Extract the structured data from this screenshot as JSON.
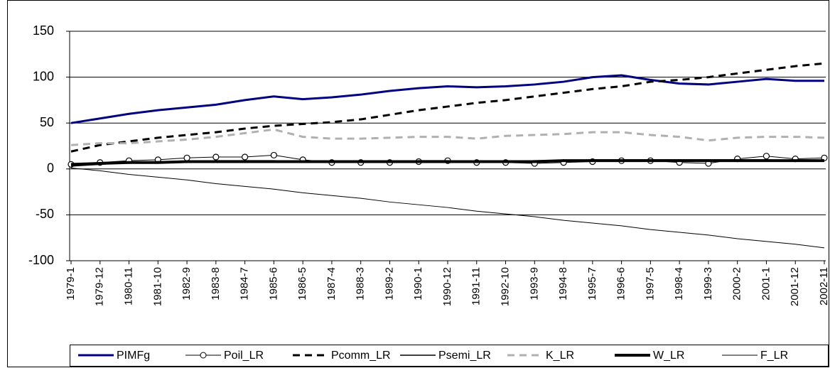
{
  "chart_data": {
    "type": "line",
    "categories": [
      "1979-1",
      "1979-12",
      "1980-11",
      "1981-10",
      "1982-9",
      "1983-8",
      "1984-7",
      "1985-6",
      "1986-5",
      "1987-4",
      "1988-3",
      "1989-2",
      "1990-1",
      "1990-12",
      "1991-11",
      "1992-10",
      "1993-9",
      "1994-8",
      "1995-7",
      "1996-6",
      "1997-5",
      "1998-4",
      "1999-3",
      "2000-2",
      "2001-1",
      "2001-12",
      "2002-11"
    ],
    "series": [
      {
        "name": "PIMFg",
        "color": "#000080",
        "width": 3,
        "dash": "solid",
        "marker": "none",
        "values": [
          50,
          55,
          60,
          64,
          67,
          70,
          75,
          79,
          76,
          78,
          81,
          85,
          88,
          90,
          89,
          90,
          92,
          95,
          100,
          102,
          97,
          93,
          92,
          95,
          98,
          96,
          96
        ]
      },
      {
        "name": "Poil_LR",
        "color": "#000000",
        "width": 1,
        "dash": "solid",
        "marker": "circle",
        "values": [
          5,
          7,
          9,
          10,
          12,
          13,
          13,
          15,
          10,
          7,
          7,
          7,
          8,
          9,
          7,
          7,
          6,
          7,
          8,
          9,
          9,
          7,
          6,
          11,
          14,
          11,
          12
        ]
      },
      {
        "name": "Pcomm_LR",
        "color": "#000000",
        "width": 3,
        "dash": "dashed",
        "marker": "none",
        "values": [
          19,
          26,
          30,
          34,
          37,
          40,
          44,
          47,
          49,
          51,
          54,
          59,
          64,
          68,
          72,
          75,
          79,
          83,
          87,
          90,
          95,
          97,
          100,
          104,
          108,
          112,
          115
        ]
      },
      {
        "name": "Psemi_LR",
        "color": "#000000",
        "width": 1.5,
        "dash": "solid",
        "marker": "none",
        "values": [
          3,
          5,
          7,
          8,
          8,
          9,
          9,
          9,
          8,
          8,
          8,
          8,
          9,
          9,
          8,
          8,
          9,
          9,
          10,
          10,
          10,
          10,
          10,
          10,
          10,
          9,
          9
        ]
      },
      {
        "name": "K_LR",
        "color": "#b0b0b0",
        "width": 3,
        "dash": "dashed",
        "marker": "none",
        "values": [
          26,
          28,
          28,
          30,
          32,
          35,
          39,
          43,
          35,
          33,
          33,
          34,
          35,
          35,
          33,
          36,
          37,
          38,
          40,
          40,
          37,
          35,
          31,
          34,
          35,
          35,
          34
        ]
      },
      {
        "name": "W_LR",
        "color": "#000000",
        "width": 4,
        "dash": "solid",
        "marker": "none",
        "values": [
          5,
          6,
          7,
          7,
          8,
          8,
          8,
          8,
          8,
          8,
          8,
          8,
          8,
          8,
          8,
          8,
          8,
          9,
          9,
          9,
          9,
          9,
          9,
          9,
          9,
          9,
          9
        ]
      },
      {
        "name": "F_LR",
        "color": "#000000",
        "width": 1,
        "dash": "solid",
        "marker": "none",
        "values": [
          1,
          -2,
          -6,
          -9,
          -12,
          -16,
          -19,
          -22,
          -26,
          -29,
          -32,
          -36,
          -39,
          -42,
          -46,
          -49,
          -52,
          -56,
          -59,
          -62,
          -66,
          -69,
          -72,
          -76,
          -79,
          -82,
          -86
        ]
      }
    ],
    "ylim": [
      -100,
      150
    ],
    "yticks": [
      -100,
      -50,
      0,
      50,
      100,
      150
    ],
    "grid": true,
    "legend": "bottom"
  }
}
